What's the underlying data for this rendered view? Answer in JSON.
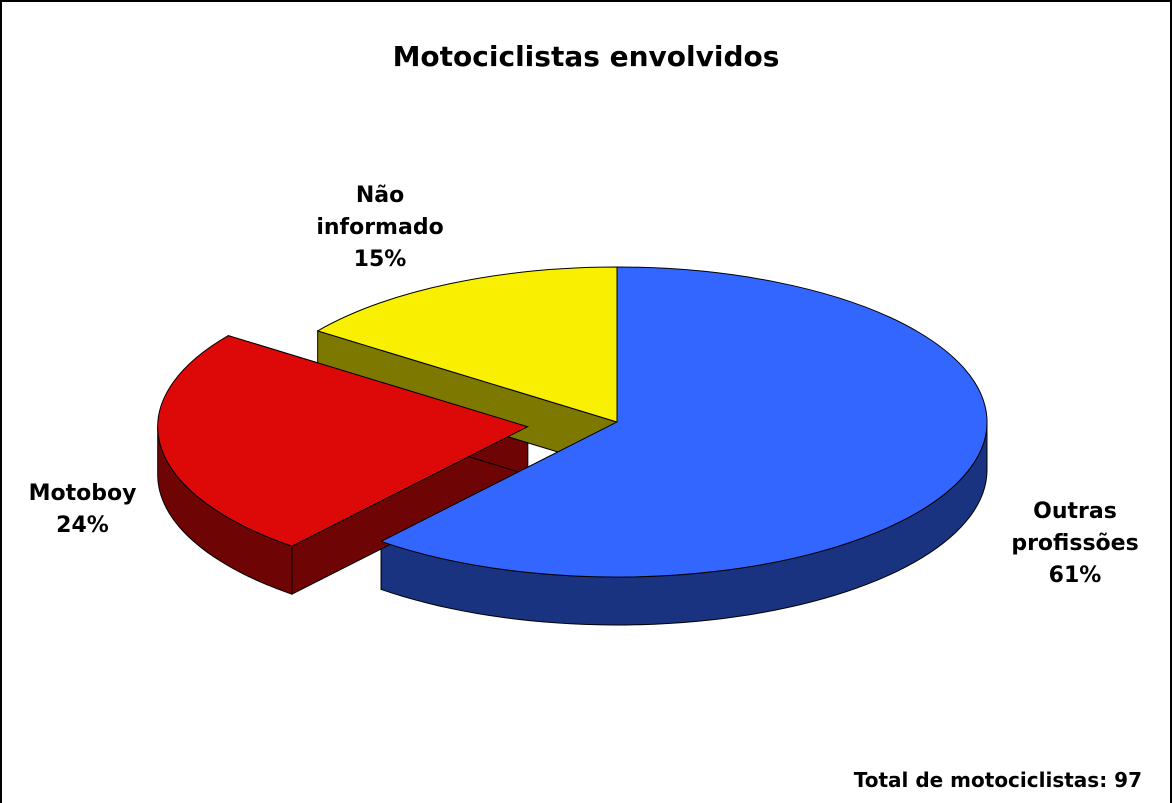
{
  "chart_data": {
    "type": "pie3d",
    "title": "Motociclistas envolvidos",
    "categories": [
      "Outras profissões",
      "Motoboy",
      "Não informado"
    ],
    "values": [
      61,
      24,
      15
    ],
    "value_labels": [
      "61%",
      "24%",
      "15%"
    ],
    "colors": [
      "#3366ff",
      "#dd0808",
      "#f8f000"
    ],
    "annotation": "Total de motociclistas: 97"
  }
}
